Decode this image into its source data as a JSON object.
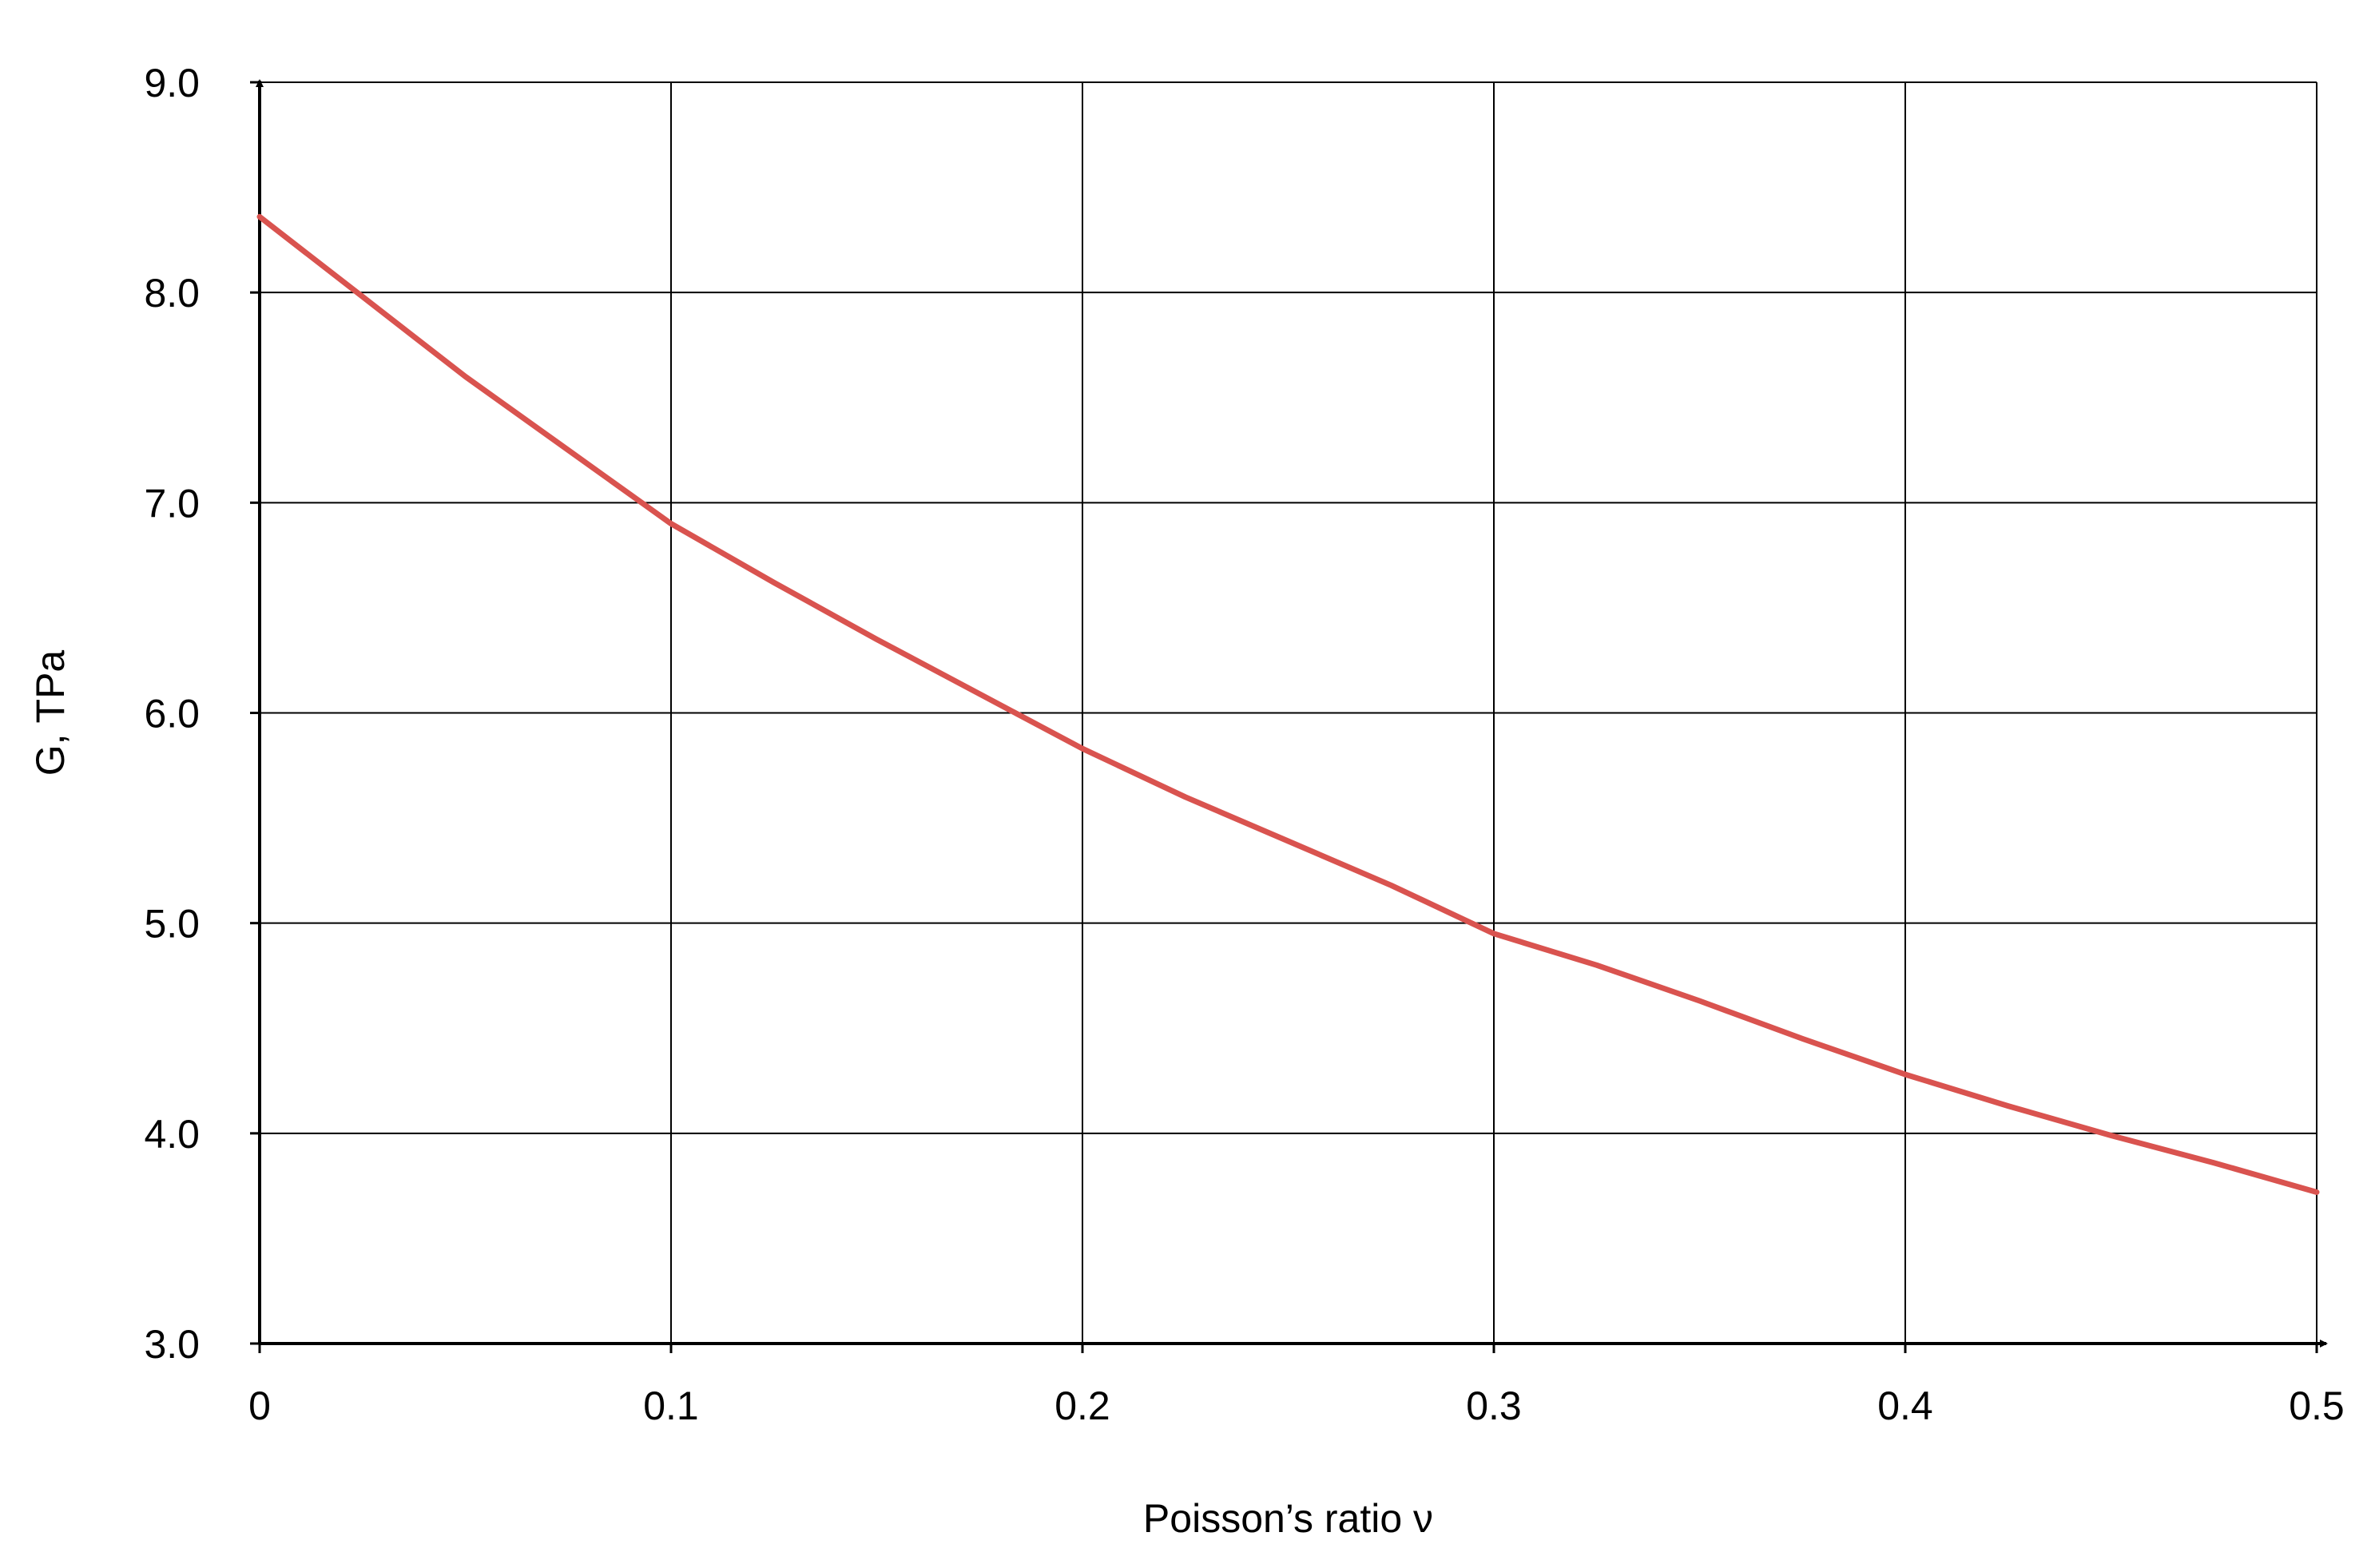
{
  "chart_data": {
    "type": "line",
    "title": "",
    "xlabel": "Poisson’s ratio ν",
    "ylabel": "G, TPa",
    "xlim": [
      0,
      0.5
    ],
    "ylim": [
      3.0,
      9.0
    ],
    "x_ticks": [
      0,
      0.1,
      0.2,
      0.3,
      0.4,
      0.5
    ],
    "x_tick_labels": [
      "0",
      "0.1",
      "0.2",
      "0.3",
      "0.4",
      "0.5"
    ],
    "y_ticks": [
      3.0,
      4.0,
      5.0,
      6.0,
      7.0,
      8.0,
      9.0
    ],
    "y_tick_labels": [
      "3.0",
      "4.0",
      "5.0",
      "6.0",
      "7.0",
      "8.0",
      "9.0"
    ],
    "grid": true,
    "legend": "none",
    "series": [
      {
        "color": "#d9534f",
        "x": [
          0,
          0.025,
          0.05,
          0.075,
          0.1,
          0.125,
          0.15,
          0.175,
          0.2,
          0.225,
          0.25,
          0.275,
          0.3,
          0.325,
          0.35,
          0.375,
          0.4,
          0.425,
          0.45,
          0.475,
          0.5
        ],
        "y": [
          8.36,
          7.98,
          7.6,
          7.25,
          6.9,
          6.62,
          6.35,
          6.09,
          5.83,
          5.6,
          5.39,
          5.18,
          4.95,
          4.8,
          4.63,
          4.45,
          4.28,
          4.13,
          3.99,
          3.86,
          3.72
        ]
      }
    ]
  }
}
